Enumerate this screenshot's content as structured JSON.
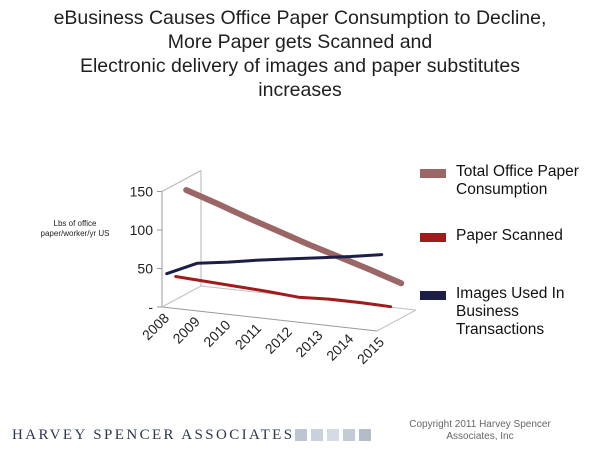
{
  "title_lines": [
    "eBusiness Causes Office Paper Consumption to Decline,",
    "More Paper gets Scanned and",
    "Electronic delivery of images and paper substitutes",
    "increases"
  ],
  "chart_data": {
    "type": "line",
    "title": "eBusiness Causes Office Paper Consumption to Decline, More Paper gets Scanned and Electronic delivery of images and paper substitutes increases",
    "ylabel": "Lbs of office paper/worker/yr US",
    "xlabel": "",
    "x": [
      "2008",
      "2009",
      "2010",
      "2011",
      "2012",
      "2013",
      "2014",
      "2015"
    ],
    "ylim": [
      0,
      150
    ],
    "yticks": [
      "-",
      "50",
      "100",
      "150"
    ],
    "legend_position": "right",
    "grid": false,
    "style": "3d-ribbon",
    "series": [
      {
        "name": "Total Office Paper Consumption",
        "color": "#9b6766",
        "values": [
          135,
          122,
          108,
          95,
          82,
          70,
          58,
          45
        ]
      },
      {
        "name": "Paper Scanned",
        "color": "#a01b1b",
        "values": [
          30,
          28,
          26,
          24,
          21,
          23,
          23,
          22
        ]
      },
      {
        "name": "Images Used In Business Transactions",
        "color": "#1c1f45",
        "values": [
          40,
          58,
          64,
          71,
          77,
          83,
          89,
          96
        ]
      }
    ]
  },
  "legend": [
    {
      "label": "Total Office Paper Consumption",
      "color": "#9b6766"
    },
    {
      "label": "Paper Scanned",
      "color": "#a01b1b"
    },
    {
      "label": "Images Used In Business Transactions",
      "color": "#1c1f45"
    }
  ],
  "footer": {
    "brand": "HARVEY SPENCER ASSOCIATES",
    "copyright": "Copyright 2011 Harvey Spencer Associates, Inc",
    "squares": [
      "#bcc5d1",
      "#c9d1dc",
      "#d5dbe4",
      "#c3cbd6",
      "#b3bdca"
    ]
  }
}
